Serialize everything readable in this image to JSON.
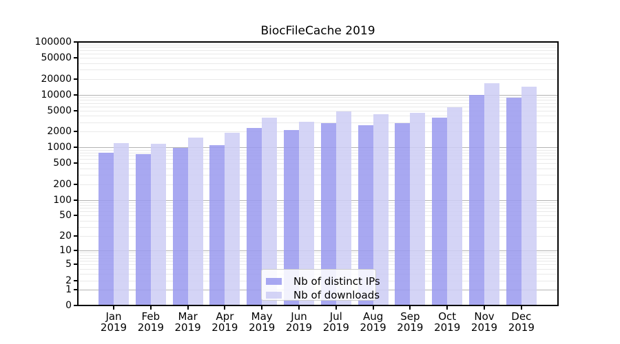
{
  "chart_data": {
    "type": "bar",
    "title": "BiocFileCache 2019",
    "categories": [
      "Jan",
      "Feb",
      "Mar",
      "Apr",
      "May",
      "Jun",
      "Jul",
      "Aug",
      "Sep",
      "Oct",
      "Nov",
      "Dec"
    ],
    "category_year": "2019",
    "series": [
      {
        "name": "Nb of distinct IPs",
        "color": "#9999ee",
        "values": [
          800,
          745,
          980,
          1110,
          2350,
          2130,
          2900,
          2670,
          2900,
          3680,
          10000,
          8870
        ]
      },
      {
        "name": "Nb of downloads",
        "color": "#ccccf5",
        "values": [
          1210,
          1180,
          1540,
          1890,
          3680,
          3100,
          4870,
          4310,
          4500,
          5830,
          16500,
          14350
        ]
      }
    ],
    "bar_alpha": 0.85,
    "yscale": "log10(value+1)",
    "ylim": [
      0,
      100000
    ],
    "yticks": [
      {
        "value": 100000,
        "label": "100000"
      },
      {
        "value": 50000,
        "label": "50000"
      },
      {
        "value": 20000,
        "label": "20000"
      },
      {
        "value": 10000,
        "label": "10000"
      },
      {
        "value": 5000,
        "label": "5000"
      },
      {
        "value": 2000,
        "label": "2000"
      },
      {
        "value": 1000,
        "label": "1000"
      },
      {
        "value": 500,
        "label": "500"
      },
      {
        "value": 200,
        "label": "200"
      },
      {
        "value": 100,
        "label": "100"
      },
      {
        "value": 50,
        "label": "50"
      },
      {
        "value": 20,
        "label": "20"
      },
      {
        "value": 10,
        "label": "10"
      },
      {
        "value": 5,
        "label": "5"
      },
      {
        "value": 2,
        "label": "2"
      },
      {
        "value": 1,
        "label": "1"
      },
      {
        "value": 0,
        "label": "0"
      }
    ],
    "grid": {
      "major_color": "#b2b2b2",
      "minor_color": "#e9e9e9",
      "major_values": [
        1,
        10,
        100,
        1000,
        10000
      ]
    },
    "legend_position": "lower center"
  }
}
